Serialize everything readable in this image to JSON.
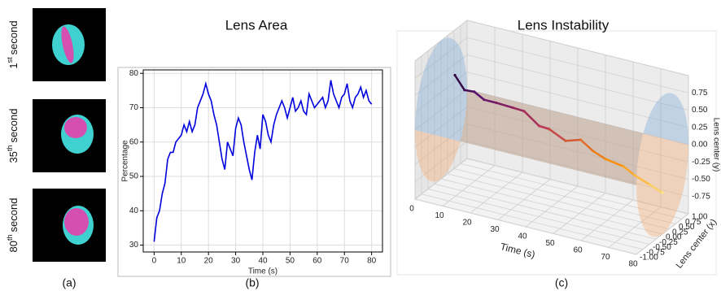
{
  "images": {
    "caption": "(a)",
    "frames": [
      {
        "num": "1",
        "sup": "st",
        "word": "second"
      },
      {
        "num": "35",
        "sup": "th",
        "word": "second"
      },
      {
        "num": "80",
        "sup": "th",
        "word": "second"
      }
    ]
  },
  "chart_data": [
    {
      "type": "line",
      "title": "Lens Area",
      "caption": "(b)",
      "xlabel": "Time (s)",
      "ylabel": "Percentage",
      "x": [
        0,
        1,
        2,
        3,
        4,
        5,
        6,
        7,
        8,
        9,
        10,
        11,
        12,
        13,
        14,
        15,
        16,
        17,
        18,
        19,
        20,
        21,
        22,
        23,
        24,
        25,
        26,
        27,
        28,
        29,
        30,
        31,
        32,
        33,
        34,
        35,
        36,
        37,
        38,
        39,
        40,
        41,
        42,
        43,
        44,
        45,
        46,
        47,
        48,
        49,
        50,
        51,
        52,
        53,
        54,
        55,
        56,
        57,
        58,
        59,
        60,
        61,
        62,
        63,
        64,
        65,
        66,
        67,
        68,
        69,
        70,
        71,
        72,
        73,
        74,
        75,
        76,
        77,
        78,
        79,
        80
      ],
      "series": [
        {
          "color": "#0000dd",
          "values": [
            31,
            38,
            40,
            45,
            48,
            55,
            57,
            57,
            60,
            61,
            62,
            65,
            63,
            66,
            63,
            65,
            70,
            72,
            74,
            77,
            74,
            72,
            68,
            65,
            60,
            55,
            52,
            60,
            58,
            56,
            64,
            67,
            65,
            60,
            56,
            52,
            49,
            57,
            62,
            58,
            68,
            66,
            62,
            60,
            65,
            68,
            70,
            72,
            70,
            67,
            70,
            73,
            69,
            70,
            72,
            69,
            68,
            74,
            72,
            70,
            71,
            72,
            73,
            70,
            72,
            78,
            74,
            72,
            70,
            73,
            74,
            77,
            72,
            70,
            73,
            74,
            76,
            73,
            75,
            72,
            71
          ]
        }
      ],
      "xlim": [
        -4,
        84
      ],
      "xticks": [
        0,
        10,
        20,
        30,
        40,
        50,
        60,
        70,
        80
      ],
      "ylim": [
        28,
        81
      ],
      "yticks": [
        30,
        40,
        50,
        60,
        70,
        80
      ],
      "grid": true
    },
    {
      "type": "line3d",
      "title": "Lens Instability",
      "caption": "(c)",
      "xlabel": "Time (s)",
      "ylabel": "Lens center (x)",
      "zlabel": "Lens center (y)",
      "x": [
        5,
        8,
        12,
        16,
        20,
        25,
        30,
        35,
        40,
        45,
        50,
        55,
        60,
        65,
        70,
        75,
        80
      ],
      "series": [
        {
          "colormap": "inferno",
          "y": [
            0,
            0.05,
            0,
            -0.05,
            0,
            0.1,
            0,
            0.05,
            -0.1,
            0,
            0.05,
            0,
            -0.05,
            0.1,
            0,
            0.05,
            0
          ],
          "z": [
            0.55,
            0.35,
            0.38,
            0.32,
            0.3,
            0.25,
            0.28,
            0.1,
            0.15,
            0,
            0.05,
            -0.05,
            -0.1,
            -0.2,
            -0.25,
            -0.35,
            -0.4
          ]
        }
      ],
      "xlim": [
        0,
        80
      ],
      "xticks": [
        0,
        10,
        20,
        30,
        40,
        50,
        60,
        70,
        80
      ],
      "ylim": [
        -1,
        1
      ],
      "yticks": [
        {
          "value": -1,
          "label": "-1.00"
        },
        -0.75,
        {
          "value": -0.5,
          "label": "-0.50"
        },
        -0.25,
        {
          "value": 0,
          "label": "0.00"
        },
        0.25,
        {
          "value": 0.5,
          "label": "0.50"
        },
        0.75,
        {
          "value": 1,
          "label": "1.00"
        }
      ],
      "zlim": [
        -1,
        1
      ],
      "zticks": [
        -0.75,
        {
          "value": -0.5,
          "label": "-0.50"
        },
        -0.25,
        {
          "value": 0,
          "label": "0.00"
        },
        0.25,
        {
          "value": 0.5,
          "label": "0.50"
        },
        0.75
      ],
      "grid": true
    }
  ]
}
